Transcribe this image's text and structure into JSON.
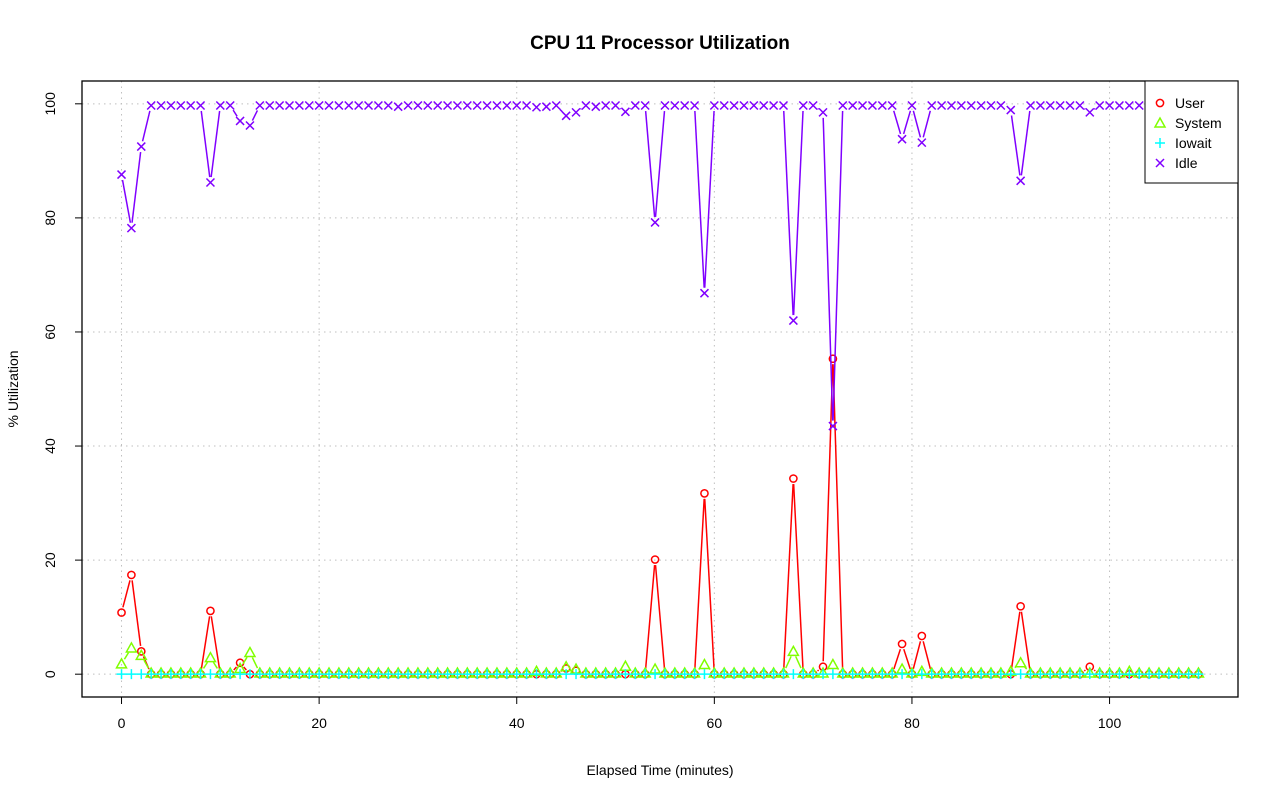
{
  "chart_data": {
    "type": "line",
    "title": "CPU  11  Processor Utilization",
    "xlabel": "Elapsed Time (minutes)",
    "ylabel": "% Utilization",
    "xlim": [
      -4,
      113
    ],
    "ylim": [
      -4,
      104
    ],
    "x_ticks": [
      0,
      20,
      40,
      60,
      80,
      100
    ],
    "y_ticks": [
      0,
      20,
      40,
      60,
      80,
      100
    ],
    "grid": true,
    "legend_position": "top-right",
    "series": [
      {
        "name": "User",
        "color": "#ff0000",
        "marker": "circle",
        "spikes": {
          "0": 10.8,
          "1": 17.4,
          "2": 4.0,
          "9": 11.1,
          "12": 2.0,
          "45": 1.0,
          "46": 0.6,
          "54": 20.1,
          "59": 31.7,
          "68": 34.3,
          "71": 1.3,
          "72": 55.3,
          "79": 5.3,
          "81": 6.7,
          "91": 11.9,
          "98": 1.3
        },
        "baseline": 0
      },
      {
        "name": "System",
        "color": "#80ff00",
        "marker": "triangle",
        "spikes": {
          "0": 1.8,
          "1": 4.6,
          "2": 3.3,
          "9": 2.9,
          "12": 1.0,
          "13": 3.8,
          "42": 0.5,
          "45": 1.3,
          "46": 0.9,
          "51": 1.4,
          "54": 0.9,
          "59": 1.7,
          "68": 4.0,
          "72": 1.7,
          "79": 0.9,
          "81": 0.5,
          "90": 0.5,
          "91": 2.0,
          "102": 0.5
        },
        "baseline": 0.2
      },
      {
        "name": "Iowait",
        "color": "#00ffff",
        "marker": "plus",
        "spikes": {},
        "baseline": 0
      },
      {
        "name": "Idle",
        "color": "#8000ff",
        "marker": "x",
        "spikes": {
          "0": 87.6,
          "1": 78.2,
          "2": 92.5,
          "9": 86.2,
          "12": 97.0,
          "13": 96.2,
          "28": 99.5,
          "42": 99.4,
          "43": 99.5,
          "45": 97.9,
          "46": 98.5,
          "48": 99.5,
          "51": 98.6,
          "54": 79.2,
          "59": 66.8,
          "68": 62.0,
          "71": 98.5,
          "72": 43.5,
          "79": 93.8,
          "81": 93.2,
          "90": 98.9,
          "91": 86.5,
          "98": 98.5
        },
        "baseline": 99.7
      }
    ],
    "x_count": 110
  }
}
